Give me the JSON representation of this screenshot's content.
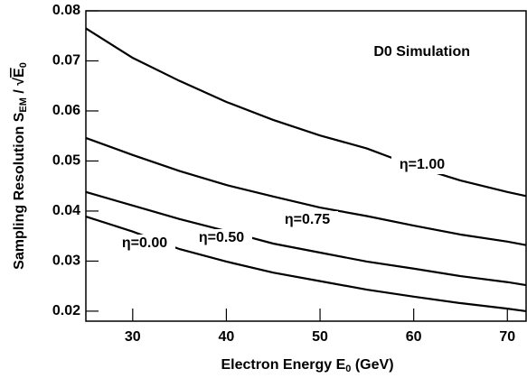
{
  "chart_data": {
    "type": "line",
    "annotation": "D0 Simulation",
    "x_label": [
      "Electron Energy E",
      "0",
      " (GeV)"
    ],
    "y_label": [
      "Sampling Resolution S",
      "EM",
      " / √",
      "E",
      "0"
    ],
    "x": [
      25,
      30,
      35,
      40,
      45,
      50,
      55,
      60,
      65,
      70,
      72
    ],
    "series": [
      {
        "name": "η=1.00",
        "color": "#000000",
        "values": [
          0.0765,
          0.0706,
          0.066,
          0.0618,
          0.0582,
          0.0551,
          0.0525,
          0.049,
          0.0461,
          0.0438,
          0.043
        ]
      },
      {
        "name": "η=0.75",
        "color": "#000000",
        "values": [
          0.0546,
          0.0512,
          0.048,
          0.0452,
          0.0429,
          0.0407,
          0.039,
          0.0371,
          0.0353,
          0.0339,
          0.0332
        ]
      },
      {
        "name": "η=0.50",
        "color": "#000000",
        "values": [
          0.0438,
          0.0411,
          0.0384,
          0.036,
          0.0335,
          0.0317,
          0.0299,
          0.0285,
          0.027,
          0.0258,
          0.0252
        ]
      },
      {
        "name": "η=0.00",
        "color": "#000000",
        "values": [
          0.0389,
          0.0359,
          0.0324,
          0.0299,
          0.0277,
          0.026,
          0.0243,
          0.0229,
          0.0216,
          0.0205,
          0.02
        ]
      }
    ],
    "xlim": [
      25,
      72
    ],
    "ylim": [
      0.018,
      0.08
    ],
    "xticks": [
      30,
      40,
      50,
      60,
      70
    ],
    "yticks": [
      0.02,
      0.03,
      0.04,
      0.05,
      0.06,
      0.07,
      0.08
    ],
    "grid": false
  }
}
